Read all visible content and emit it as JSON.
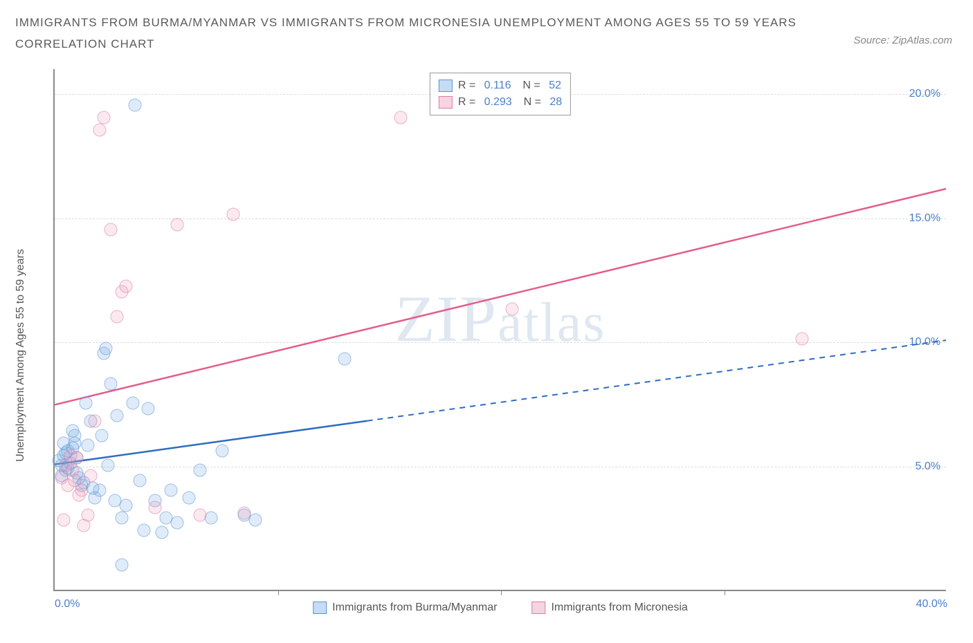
{
  "title_line1": "IMMIGRANTS FROM BURMA/MYANMAR VS IMMIGRANTS FROM MICRONESIA UNEMPLOYMENT AMONG AGES 55 TO 59 YEARS",
  "title_line2": "CORRELATION CHART",
  "source_prefix": "Source: ",
  "source_name": "ZipAtlas.com",
  "y_axis_label": "Unemployment Among Ages 55 to 59 years",
  "watermark_big": "ZIP",
  "watermark_small": "atlas",
  "chart": {
    "type": "scatter",
    "xlim": [
      0,
      40
    ],
    "ylim": [
      0,
      21
    ],
    "x_ticks": [
      0,
      10,
      20,
      30,
      40
    ],
    "x_tick_labels": [
      "0.0%",
      "",
      "",
      "",
      "40.0%"
    ],
    "y_ticks": [
      5,
      10,
      15,
      20
    ],
    "y_tick_labels": [
      "5.0%",
      "10.0%",
      "15.0%",
      "20.0%"
    ],
    "grid_color": "#dcdcdc",
    "background_color": "#ffffff",
    "axis_color": "#888888",
    "series": [
      {
        "name": "Immigrants from Burma/Myanmar",
        "color_fill": "rgba(120,170,225,0.4)",
        "color_stroke": "#5a95d6",
        "swatch_fill": "#c5dcf2",
        "swatch_border": "#5a95d6",
        "R": "0.116",
        "N": "52",
        "trend": {
          "x1": 0,
          "y1": 5.1,
          "x2": 40,
          "y2": 10.1,
          "solid_until_x": 14,
          "color": "#2e6bc0",
          "width": 2.5
        },
        "points": [
          [
            0.2,
            5.2
          ],
          [
            0.3,
            5.0
          ],
          [
            0.4,
            5.4
          ],
          [
            0.5,
            4.8
          ],
          [
            0.6,
            5.6
          ],
          [
            0.7,
            5.1
          ],
          [
            0.8,
            6.4
          ],
          [
            0.9,
            5.9
          ],
          [
            1.0,
            5.3
          ],
          [
            1.1,
            4.5
          ],
          [
            1.2,
            4.2
          ],
          [
            1.4,
            7.5
          ],
          [
            1.5,
            5.8
          ],
          [
            1.6,
            6.8
          ],
          [
            1.8,
            3.7
          ],
          [
            2.0,
            4.0
          ],
          [
            2.2,
            9.5
          ],
          [
            2.3,
            9.7
          ],
          [
            2.5,
            8.3
          ],
          [
            2.7,
            3.6
          ],
          [
            2.8,
            7.0
          ],
          [
            3.0,
            2.9
          ],
          [
            3.2,
            3.4
          ],
          [
            3.5,
            7.5
          ],
          [
            3.6,
            19.5
          ],
          [
            3.8,
            4.4
          ],
          [
            4.0,
            2.4
          ],
          [
            4.2,
            7.3
          ],
          [
            4.5,
            3.6
          ],
          [
            4.8,
            2.3
          ],
          [
            5.0,
            2.9
          ],
          [
            5.2,
            4.0
          ],
          [
            5.5,
            2.7
          ],
          [
            6.0,
            3.7
          ],
          [
            6.5,
            4.8
          ],
          [
            7.0,
            2.9
          ],
          [
            7.5,
            5.6
          ],
          [
            8.5,
            3.0
          ],
          [
            9.0,
            2.8
          ],
          [
            13.0,
            9.3
          ],
          [
            3.0,
            1.0
          ],
          [
            1.0,
            4.7
          ],
          [
            0.5,
            5.5
          ],
          [
            0.6,
            4.9
          ],
          [
            0.8,
            5.7
          ],
          [
            1.3,
            4.3
          ],
          [
            1.7,
            4.1
          ],
          [
            2.1,
            6.2
          ],
          [
            2.4,
            5.0
          ],
          [
            0.9,
            6.2
          ],
          [
            0.4,
            5.9
          ],
          [
            0.3,
            4.6
          ]
        ]
      },
      {
        "name": "Immigrants from Micronesia",
        "color_fill": "rgba(235,150,180,0.35)",
        "color_stroke": "#e07aa0",
        "swatch_fill": "#f6d4e1",
        "swatch_border": "#e07aa0",
        "R": "0.293",
        "N": "28",
        "trend": {
          "x1": 0,
          "y1": 7.5,
          "x2": 40,
          "y2": 16.2,
          "solid_until_x": 40,
          "color": "#e35d8a",
          "width": 2.5
        },
        "points": [
          [
            0.3,
            4.5
          ],
          [
            0.5,
            5.0
          ],
          [
            0.6,
            4.2
          ],
          [
            0.8,
            4.8
          ],
          [
            1.0,
            5.3
          ],
          [
            1.2,
            4.0
          ],
          [
            1.5,
            3.0
          ],
          [
            1.8,
            6.8
          ],
          [
            2.0,
            18.5
          ],
          [
            2.2,
            19.0
          ],
          [
            2.5,
            14.5
          ],
          [
            2.8,
            11.0
          ],
          [
            3.0,
            12.0
          ],
          [
            3.2,
            12.2
          ],
          [
            4.5,
            3.3
          ],
          [
            5.5,
            14.7
          ],
          [
            6.5,
            3.0
          ],
          [
            8.0,
            15.1
          ],
          [
            8.5,
            3.1
          ],
          [
            15.5,
            19.0
          ],
          [
            20.5,
            11.3
          ],
          [
            33.5,
            10.1
          ],
          [
            0.4,
            2.8
          ],
          [
            1.3,
            2.6
          ],
          [
            0.7,
            5.4
          ],
          [
            0.9,
            4.4
          ],
          [
            1.6,
            4.6
          ],
          [
            1.1,
            3.8
          ]
        ]
      }
    ],
    "legend": {
      "r_label": "R =",
      "n_label": "N ="
    }
  }
}
